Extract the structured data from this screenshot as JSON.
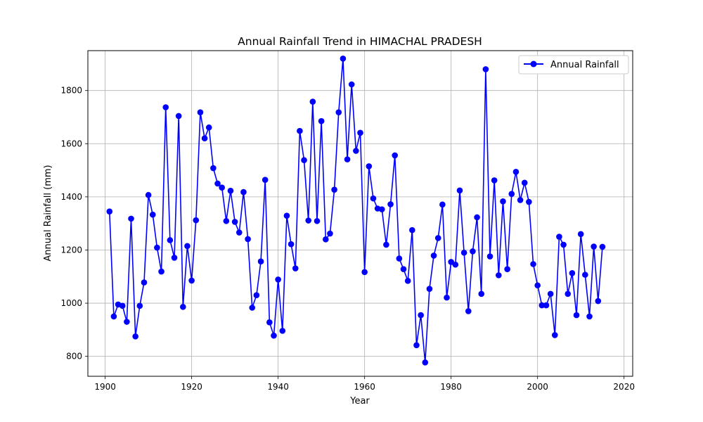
{
  "chart_data": {
    "type": "line",
    "title": "Annual Rainfall Trend in HIMACHAL PRADESH",
    "xlabel": "Year",
    "ylabel": "Annual Rainfall (mm)",
    "xlim": [
      1896,
      2022
    ],
    "ylim": [
      725,
      1950
    ],
    "xticks": [
      1900,
      1920,
      1940,
      1960,
      1980,
      2000,
      2020
    ],
    "yticks": [
      800,
      1000,
      1200,
      1400,
      1600,
      1800
    ],
    "grid": true,
    "legend_position": "top-right",
    "series_color": "#0000ff",
    "series": [
      {
        "name": "Annual Rainfall",
        "x": [
          1901,
          1902,
          1903,
          1904,
          1905,
          1906,
          1907,
          1908,
          1909,
          1910,
          1911,
          1912,
          1913,
          1914,
          1915,
          1916,
          1917,
          1918,
          1919,
          1920,
          1921,
          1922,
          1923,
          1924,
          1925,
          1926,
          1927,
          1928,
          1929,
          1930,
          1931,
          1932,
          1933,
          1934,
          1935,
          1936,
          1937,
          1938,
          1939,
          1940,
          1941,
          1942,
          1943,
          1944,
          1945,
          1946,
          1947,
          1948,
          1949,
          1950,
          1951,
          1952,
          1953,
          1954,
          1955,
          1956,
          1957,
          1958,
          1959,
          1960,
          1961,
          1962,
          1963,
          1964,
          1965,
          1966,
          1967,
          1968,
          1969,
          1970,
          1971,
          1972,
          1973,
          1974,
          1975,
          1976,
          1977,
          1978,
          1979,
          1980,
          1981,
          1982,
          1983,
          1984,
          1985,
          1986,
          1987,
          1988,
          1989,
          1990,
          1991,
          1992,
          1993,
          1994,
          1995,
          1996,
          1997,
          1998,
          1999,
          2000,
          2001,
          2002,
          2003,
          2004,
          2005,
          2006,
          2007,
          2008,
          2009,
          2010,
          2011,
          2012,
          2013,
          2014,
          2015
        ],
        "y": [
          1345,
          950,
          995,
          990,
          930,
          1318,
          875,
          990,
          1078,
          1407,
          1333,
          1209,
          1119,
          1737,
          1237,
          1171,
          1704,
          986,
          1215,
          1085,
          1312,
          1718,
          1620,
          1661,
          1508,
          1450,
          1435,
          1309,
          1423,
          1306,
          1266,
          1418,
          1241,
          983,
          1030,
          1157,
          1464,
          928,
          878,
          1089,
          896,
          1329,
          1222,
          1131,
          1648,
          1538,
          1311,
          1758,
          1309,
          1685,
          1240,
          1262,
          1427,
          1718,
          1920,
          1541,
          1823,
          1573,
          1641,
          1117,
          1515,
          1394,
          1356,
          1353,
          1220,
          1372,
          1556,
          1168,
          1128,
          1084,
          1275,
          842,
          955,
          777,
          1054,
          1179,
          1245,
          1371,
          1021,
          1155,
          1145,
          1424,
          1190,
          970,
          1195,
          1323,
          1035,
          1880,
          1176,
          1462,
          1105,
          1383,
          1128,
          1411,
          1494,
          1388,
          1453,
          1381,
          1147,
          1067,
          992,
          992,
          1035,
          880,
          1250,
          1220,
          1035,
          1113,
          955,
          1260,
          1107,
          950,
          1213,
          1008,
          1212
        ]
      }
    ]
  }
}
